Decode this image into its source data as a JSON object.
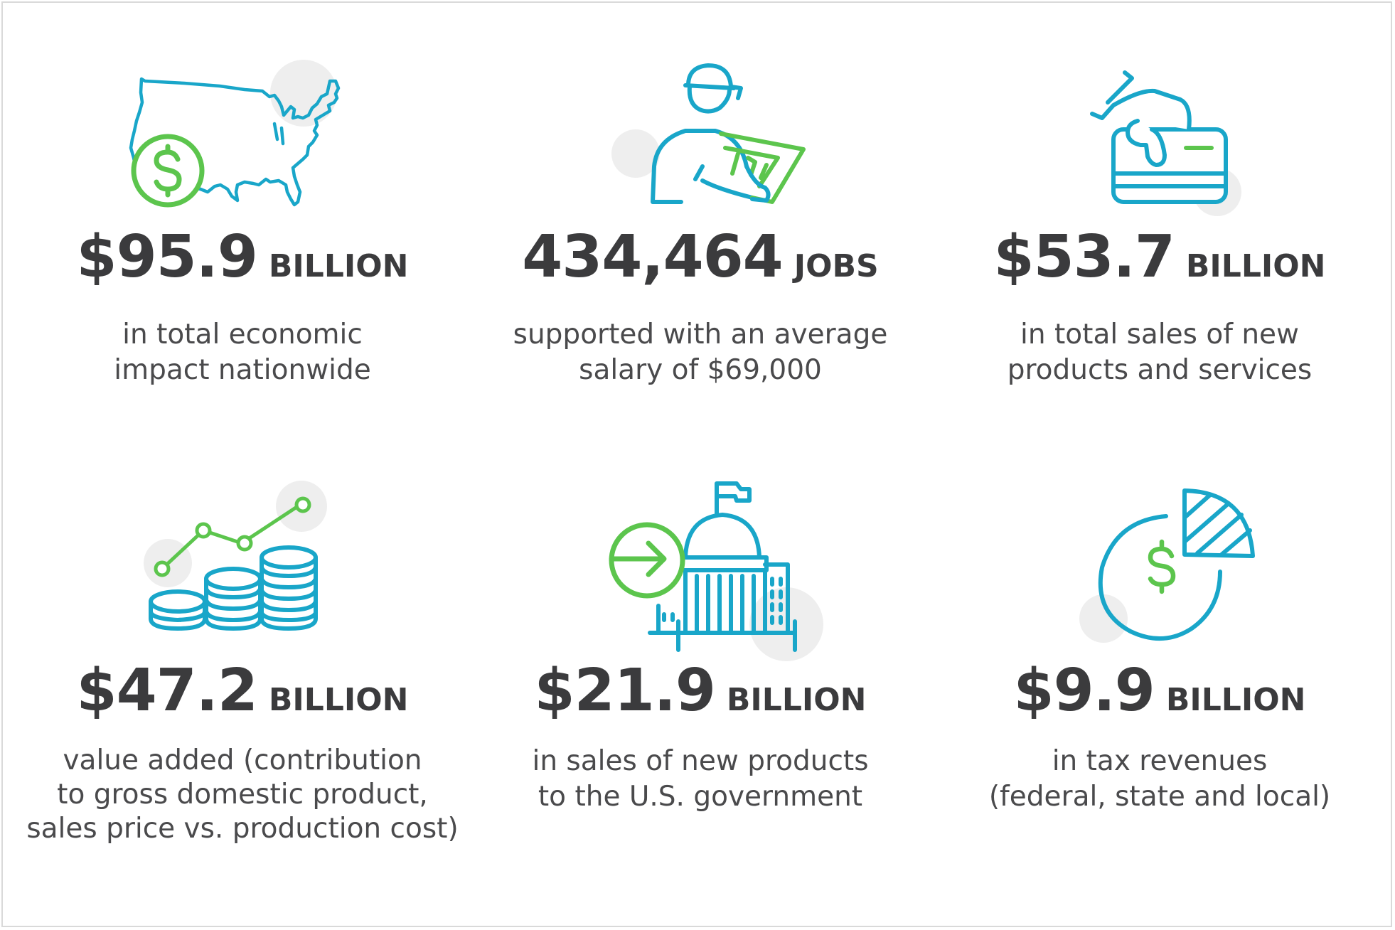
{
  "stats": [
    {
      "number": "$95.9",
      "unit": "BILLION",
      "lines": [
        "in total economic",
        "impact nationwide"
      ],
      "icon": "usa-map-dollar-icon"
    },
    {
      "number": "434,464",
      "unit": "JOBS",
      "lines": [
        "supported with an average",
        "salary of $69,000"
      ],
      "icon": "worker-blueprint-icon"
    },
    {
      "number": "$53.7",
      "unit": "BILLION",
      "lines": [
        "in total sales of new",
        "products and services"
      ],
      "icon": "hand-credit-card-icon"
    },
    {
      "number": "$47.2",
      "unit": "BILLION",
      "lines": [
        "value added (contribution",
        "to gross domestic product,",
        "sales price vs. production cost)"
      ],
      "icon": "coins-growth-chart-icon"
    },
    {
      "number": "$21.9",
      "unit": "BILLION",
      "lines": [
        "in sales of new products",
        "to the U.S. government"
      ],
      "icon": "government-building-arrow-icon"
    },
    {
      "number": "$9.9",
      "unit": "BILLION",
      "lines": [
        "in tax revenues",
        "(federal, state and local)"
      ],
      "icon": "tax-pie-chart-dollar-icon"
    }
  ],
  "colors": {
    "icon_blue": "#19a6c9",
    "icon_green": "#5cc54d",
    "accent_gray": "#eeeeee",
    "text": "#3b3b3d"
  }
}
